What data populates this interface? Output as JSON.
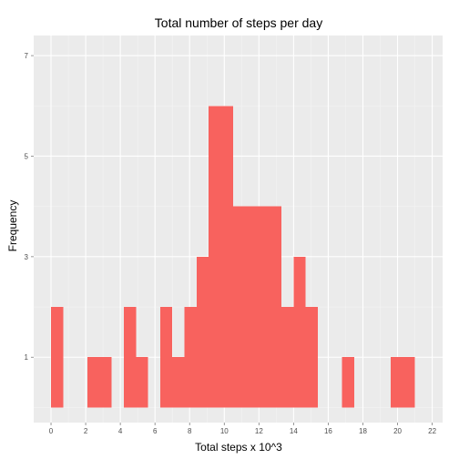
{
  "chart_data": {
    "type": "bar",
    "title": "Total number of steps per day",
    "xlabel": "Total steps x 10^3",
    "ylabel": "Frequency",
    "bin_width": 0.7,
    "bins_start": [
      0,
      0.7,
      1.4,
      2.1,
      2.8,
      3.5,
      4.2,
      4.9,
      5.6,
      6.3,
      7.0,
      7.7,
      8.4,
      9.1,
      9.8,
      10.5,
      11.2,
      11.9,
      12.6,
      13.3,
      14.0,
      14.7,
      15.4,
      16.1,
      16.8,
      17.5,
      18.2,
      18.9,
      19.6,
      20.3,
      21.0
    ],
    "values": [
      2,
      0,
      0,
      1,
      1,
      0,
      2,
      1,
      0,
      2,
      1,
      2,
      3,
      6,
      6,
      4,
      4,
      4,
      4,
      2,
      3,
      2,
      0,
      0,
      1,
      0,
      0,
      0,
      1,
      1,
      0
    ],
    "xlim": [
      -1,
      22.6
    ],
    "ylim": [
      -0.3,
      7.4
    ],
    "x_ticks": [
      0,
      2,
      4,
      6,
      8,
      10,
      12,
      14,
      16,
      18,
      20,
      22
    ],
    "y_ticks": [
      1,
      3,
      5,
      7
    ],
    "grid": true,
    "legend": "none",
    "colors": {
      "bar": "#f8625e",
      "panel": "#ebebeb",
      "grid_major": "#ffffff",
      "grid_minor": "#f4f4f4"
    }
  }
}
